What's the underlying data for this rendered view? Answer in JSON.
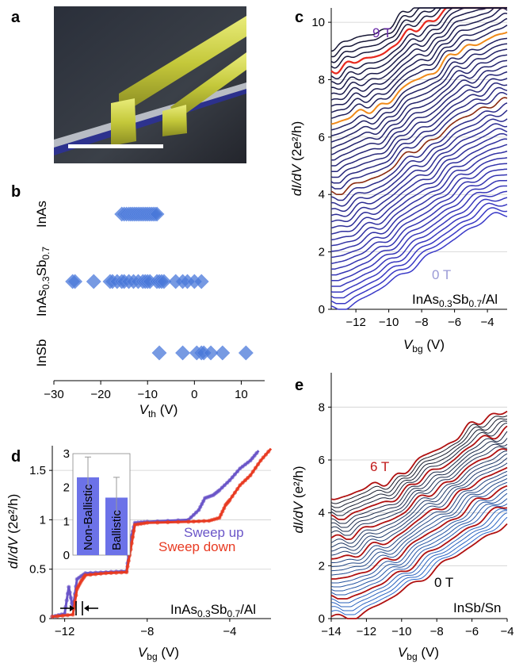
{
  "panel_labels": {
    "a": "a",
    "b": "b",
    "c": "c",
    "d": "d",
    "e": "e"
  },
  "colors": {
    "marker_blue": "#4a78d8",
    "sweep_up": "#6a55c8",
    "sweep_down": "#e83a22",
    "inset_bar": "#6c72e8",
    "trace_dark": "#141432",
    "trace_red": "#e8281e",
    "trace_orange": "#f08a1a",
    "trace_brown": "#8a2a10",
    "trace_blue": "#3a3ab0",
    "e_blue": "#2a6ad0",
    "e_red": "#b01010",
    "nanowire_yellow": "#c8cc3a"
  },
  "chart_data": [
    {
      "panel": "b",
      "type": "scatter",
      "title": "",
      "xlabel_main": "V",
      "xlabel_sub": "th",
      "xlabel_unit": " (V)",
      "xlim": [
        -30,
        15
      ],
      "xticks": [
        "−30",
        "−20",
        "−10",
        "0",
        "10"
      ],
      "xtick_values": [
        -30,
        -20,
        -10,
        0,
        10
      ],
      "categories": [
        {
          "label_main": "InAs",
          "label_sub": "",
          "label_tail": "",
          "label_sub2": ""
        },
        {
          "label_main": "InAs",
          "label_sub": "0.3",
          "label_tail": "Sb",
          "label_sub2": "0.7"
        },
        {
          "label_main": "InSb",
          "label_sub": "",
          "label_tail": "",
          "label_sub2": ""
        }
      ],
      "series": [
        {
          "category": 0,
          "x": [
            -15.5,
            -15,
            -14.5,
            -14,
            -13.6,
            -13.2,
            -12.8,
            -12.4,
            -12,
            -11.6,
            -11.2,
            -10.8,
            -10.4,
            -10,
            -9.6,
            -9.2,
            -8.8,
            -8.4,
            -8
          ]
        },
        {
          "category": 1,
          "x": [
            -26,
            -25.5,
            -21.5,
            -18,
            -17.5,
            -16.5,
            -15.5,
            -15,
            -14,
            -13,
            -12,
            -11,
            -10.5,
            -10,
            -9.5,
            -8,
            -7.5,
            -7,
            -6.5,
            -4,
            -2.5,
            -1.5,
            0,
            1.5
          ]
        },
        {
          "category": 2,
          "x": [
            -7.5,
            -2.5,
            0.5,
            1.5,
            2,
            3.5,
            6,
            11
          ]
        }
      ]
    },
    {
      "panel": "c",
      "type": "line",
      "title": "",
      "ylabel_main": "dI/dV",
      "ylabel_unit": " (2e²/h)",
      "xlabel_main": "V",
      "xlabel_sub": "bg",
      "xlabel_unit": " (V)",
      "xlim": [
        -13.5,
        -2.8
      ],
      "ylim": [
        0,
        10.5
      ],
      "xticks": [
        "−12",
        "−10",
        "−8",
        "−6",
        "−4"
      ],
      "xtick_values": [
        -12,
        -10,
        -8,
        -6,
        -4
      ],
      "yticks": [
        "0",
        "2",
        "4",
        "6",
        "8",
        "10"
      ],
      "ytick_values": [
        0,
        2,
        4,
        6,
        8,
        10
      ],
      "n_traces": 46,
      "trace_offset": 0.2,
      "field_labels": {
        "top": "9 T",
        "bottom": "0 T"
      },
      "material_main": "InAs",
      "material_sub": "0.3",
      "material_tail": "Sb",
      "material_sub2": "0.7",
      "material_end": "/Al"
    },
    {
      "panel": "d",
      "type": "line",
      "title": "",
      "ylabel_main": "dI/dV",
      "ylabel_unit": " (2e²/h)",
      "xlabel_main": "V",
      "xlabel_sub": "bg",
      "xlabel_unit": " (V)",
      "xlim": [
        -12.6,
        -2
      ],
      "ylim": [
        0,
        1.75
      ],
      "xticks": [
        "−12",
        "−8",
        "−4"
      ],
      "xtick_values": [
        -12,
        -8,
        -4
      ],
      "yticks": [
        "0",
        "0.5",
        "1",
        "1.5"
      ],
      "ytick_values": [
        0,
        0.5,
        1,
        1.5
      ],
      "series": [
        {
          "name": "Sweep up",
          "x": [
            -12.6,
            -12,
            -11.8,
            -11.6,
            -11.4,
            -11,
            -10,
            -9,
            -8.8,
            -8.6,
            -8,
            -6,
            -5.5,
            -5.2,
            -4.8,
            -4.5,
            -4,
            -3.5,
            -3,
            -2.6
          ],
          "y": [
            0.02,
            0.05,
            0.32,
            0.1,
            0.4,
            0.46,
            0.47,
            0.48,
            0.8,
            0.97,
            0.98,
            1.0,
            1.1,
            1.22,
            1.25,
            1.3,
            1.4,
            1.52,
            1.6,
            1.7
          ]
        },
        {
          "name": "Sweep down",
          "x": [
            -12.6,
            -11.6,
            -11.4,
            -11.2,
            -11,
            -10,
            -9,
            -8.8,
            -8.6,
            -8,
            -6,
            -5,
            -4.5,
            -4.2,
            -4,
            -3.5,
            -3,
            -2.5,
            -2
          ],
          "y": [
            0.02,
            0.04,
            0.3,
            0.38,
            0.44,
            0.46,
            0.47,
            0.7,
            0.95,
            0.97,
            0.98,
            0.99,
            1.02,
            1.15,
            1.2,
            1.35,
            1.45,
            1.6,
            1.72
          ]
        }
      ],
      "inset": {
        "type": "bar",
        "ylim": [
          0,
          3
        ],
        "yticks": [
          "0",
          "1",
          "2",
          "3"
        ],
        "ytick_values": [
          0,
          1,
          2,
          3
        ],
        "categories": [
          "Non-Ballistic",
          "Ballistic"
        ],
        "values": [
          2.3,
          1.7
        ],
        "errors": [
          0.6,
          0.6
        ]
      },
      "material_main": "InAs",
      "material_sub": "0.3",
      "material_tail": "Sb",
      "material_sub2": "0.7",
      "material_end": "/Al"
    },
    {
      "panel": "e",
      "type": "line",
      "title": "",
      "ylabel_main": "dI/dV",
      "ylabel_unit": " (e²/h)",
      "xlabel_main": "V",
      "xlabel_sub": "bg",
      "xlabel_unit": " (V)",
      "xlim": [
        -14,
        -4
      ],
      "ylim": [
        0,
        9.3
      ],
      "xticks": [
        "−14",
        "−12",
        "−10",
        "−8",
        "−6",
        "−4"
      ],
      "xtick_values": [
        -14,
        -12,
        -10,
        -8,
        -6,
        -4
      ],
      "yticks": [
        "0",
        "2",
        "4",
        "6",
        "8"
      ],
      "ytick_values": [
        0,
        2,
        4,
        6,
        8
      ],
      "n_traces": 31,
      "trace_offset": 0.15,
      "field_labels": {
        "top": "6 T",
        "bottom": "0 T"
      },
      "material": "InSb/Sn"
    }
  ]
}
